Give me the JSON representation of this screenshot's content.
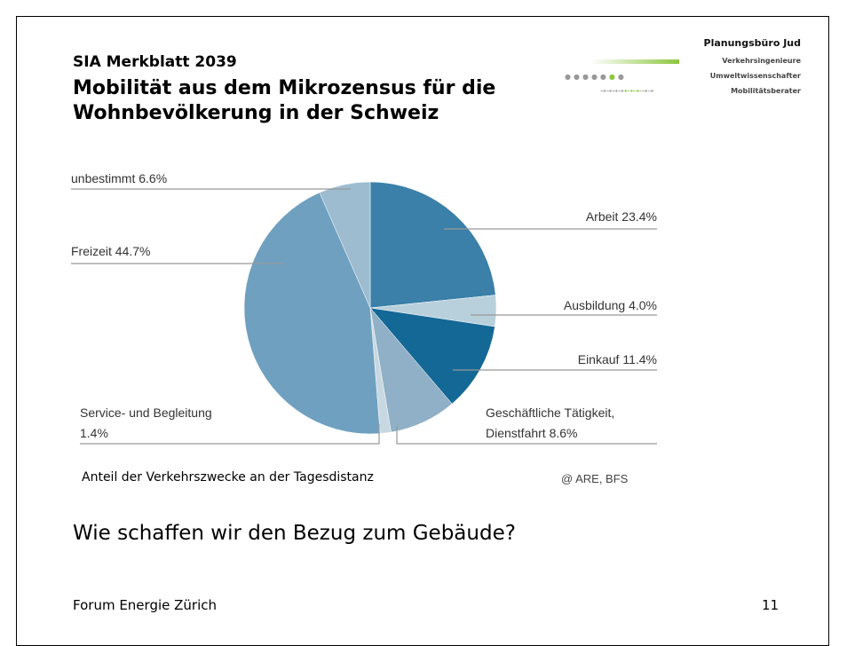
{
  "header": {
    "subtitle": "SIA Merkblatt 2039",
    "title": "Mobilität aus dem Mikrozensus für die Wohnbevölkerung in der Schweiz"
  },
  "logo": {
    "name": "Planungsbüro Jud",
    "lines": [
      "Verkehrsingenieure",
      "Umweltwissenschafter",
      "Mobilitätsberater"
    ]
  },
  "chart_data": {
    "type": "pie",
    "categories": [
      "Arbeit",
      "Ausbildung",
      "Einkauf",
      "Geschäftliche Tätigkeit, Dienstfahrt",
      "Service- und Begleitung",
      "Freizeit",
      "unbestimmt"
    ],
    "values": [
      23.4,
      4.0,
      11.4,
      8.6,
      1.4,
      44.7,
      6.6
    ],
    "value_labels": [
      "23.4%",
      "4.0%",
      "11.4%",
      "8.6%",
      "1.4%",
      "44.7%",
      "6.6%"
    ],
    "colors": [
      "#3a80a8",
      "#b8d0dc",
      "#146896",
      "#8fb0c6",
      "#c8d8e2",
      "#6fa0c0",
      "#9dbcd0"
    ]
  },
  "caption": "Anteil der Verkehrszwecke an der Tagesdistanz",
  "source": "@ ARE, BFS",
  "question": "Wie schaffen wir den Bezug zum Gebäude?",
  "footer": {
    "text": "Forum Energie Zürich",
    "page": "11"
  }
}
